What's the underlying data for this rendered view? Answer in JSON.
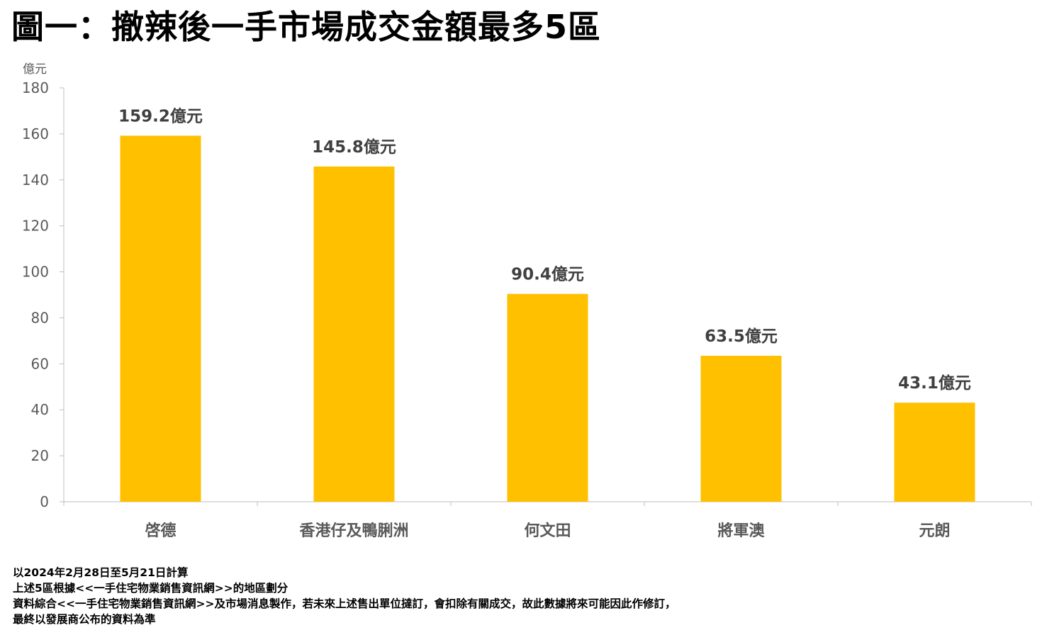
{
  "title": "圖一：撤辣後一手市場成交金額最多5區",
  "chart_data": {
    "type": "bar",
    "ylabel": "億元",
    "categories": [
      "啓德",
      "香港仔及鴨脷洲",
      "何文田",
      "將軍澳",
      "元朗"
    ],
    "values": [
      159.2,
      145.8,
      90.4,
      63.5,
      43.1
    ],
    "data_labels": [
      "159.2億元",
      "145.8億元",
      "90.4億元",
      "63.5億元",
      "43.1億元"
    ],
    "yticks": [
      0,
      20,
      40,
      60,
      80,
      100,
      120,
      140,
      160,
      180
    ],
    "ylim": [
      0,
      180
    ],
    "bar_color": "#FFC000",
    "grid": false
  },
  "notes": [
    "以2024年2月28日至5月21日計算",
    "上述5區根據<<一手住宅物業銷售資訊網>>的地區劃分",
    "資料綜合<<一手住宅物業銷售資訊網>>及市場消息製作，若未來上述售出單位撻訂，會扣除有關成交，故此數據將來可能因此作修訂，",
    "最終以發展商公布的資料為準"
  ]
}
